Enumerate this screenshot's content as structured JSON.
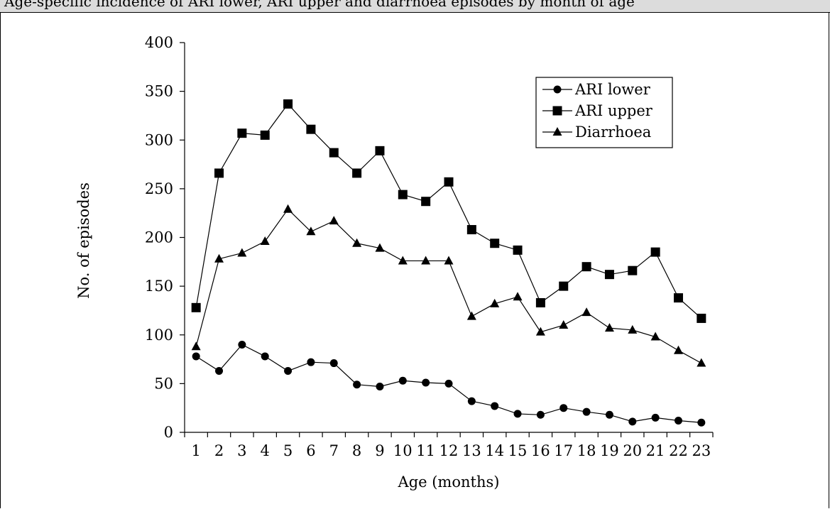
{
  "caption": {
    "text": "Age-specific incidence of ARI lower, ARI upper and diarrhoea episodes by month of age"
  },
  "chart_data": {
    "type": "line",
    "title": "",
    "xlabel": "Age (months)",
    "ylabel": "No. of episodes",
    "ylim": [
      0,
      400
    ],
    "yticks": [
      0,
      50,
      100,
      150,
      200,
      250,
      300,
      350,
      400
    ],
    "grid": false,
    "legend_position": "top-right",
    "x": [
      1,
      2,
      3,
      4,
      5,
      6,
      7,
      8,
      9,
      10,
      11,
      12,
      13,
      14,
      15,
      16,
      17,
      18,
      19,
      20,
      21,
      22,
      23
    ],
    "series": [
      {
        "name": "ARI lower",
        "marker": "circle",
        "values": [
          78,
          63,
          90,
          78,
          63,
          72,
          71,
          49,
          47,
          53,
          51,
          50,
          32,
          27,
          19,
          18,
          25,
          21,
          18,
          11,
          15,
          12,
          10
        ]
      },
      {
        "name": "ARI upper",
        "marker": "square",
        "values": [
          128,
          266,
          307,
          305,
          337,
          311,
          287,
          266,
          289,
          244,
          237,
          257,
          208,
          194,
          187,
          133,
          150,
          170,
          162,
          166,
          185,
          138,
          117
        ]
      },
      {
        "name": "Diarrhoea",
        "marker": "triangle",
        "values": [
          88,
          178,
          184,
          196,
          229,
          206,
          217,
          194,
          189,
          176,
          176,
          176,
          119,
          132,
          139,
          103,
          110,
          123,
          107,
          105,
          98,
          84,
          71
        ]
      }
    ],
    "colors": {
      "line": "#000000",
      "marker": "#000000"
    }
  }
}
